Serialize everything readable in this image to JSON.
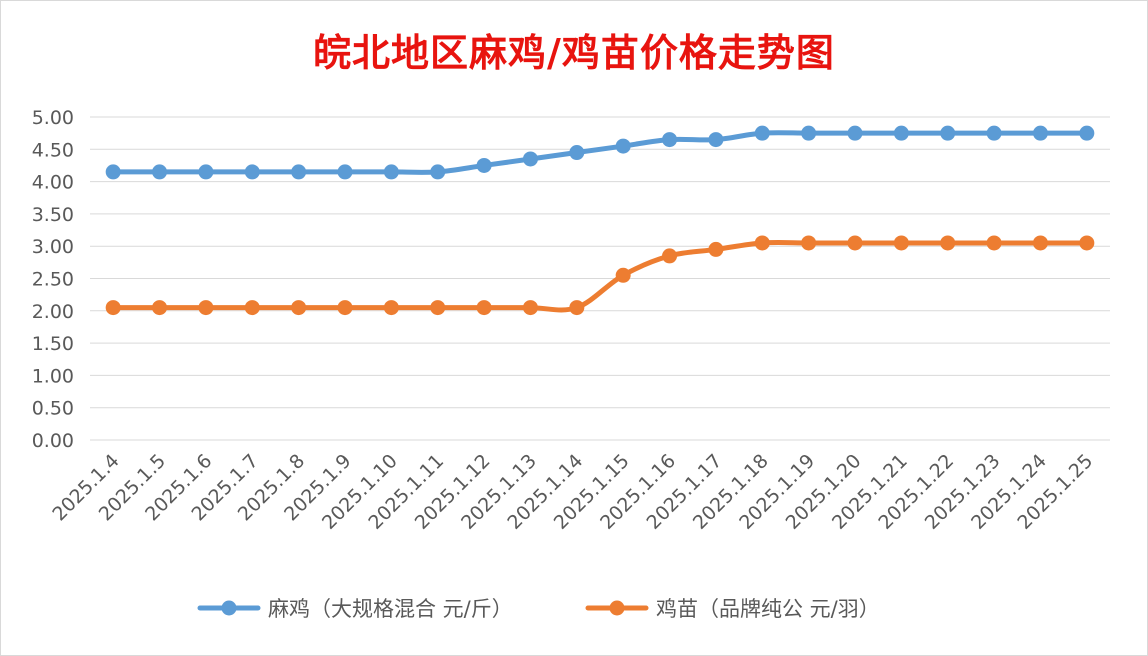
{
  "chart_data": {
    "type": "line",
    "title": "皖北地区麻鸡/鸡苗价格走势图",
    "xlabel": "",
    "ylabel": "",
    "ylim": [
      0,
      5
    ],
    "ytick_step": 0.5,
    "ytick_labels": [
      "0.00",
      "0.50",
      "1.00",
      "1.50",
      "2.00",
      "2.50",
      "3.00",
      "3.50",
      "4.00",
      "4.50",
      "5.00"
    ],
    "grid": true,
    "legend_position": "bottom",
    "categories": [
      "2025.1.4",
      "2025.1.5",
      "2025.1.6",
      "2025.1.7",
      "2025.1.8",
      "2025.1.9",
      "2025.1.10",
      "2025.1.11",
      "2025.1.12",
      "2025.1.13",
      "2025.1.14",
      "2025.1.15",
      "2025.1.16",
      "2025.1.17",
      "2025.1.18",
      "2025.1.19",
      "2025.1.20",
      "2025.1.21",
      "2025.1.22",
      "2025.1.23",
      "2025.1.24",
      "2025.1.25"
    ],
    "series": [
      {
        "name": "麻鸡（大规格混合 元/斤）",
        "color": "#5b9bd5",
        "values": [
          4.15,
          4.15,
          4.15,
          4.15,
          4.15,
          4.15,
          4.15,
          4.15,
          4.25,
          4.35,
          4.45,
          4.55,
          4.65,
          4.65,
          4.75,
          4.75,
          4.75,
          4.75,
          4.75,
          4.75,
          4.75,
          4.75
        ]
      },
      {
        "name": "鸡苗（品牌纯公 元/羽）",
        "color": "#ed7d31",
        "values": [
          2.05,
          2.05,
          2.05,
          2.05,
          2.05,
          2.05,
          2.05,
          2.05,
          2.05,
          2.05,
          2.05,
          2.55,
          2.85,
          2.95,
          3.05,
          3.05,
          3.05,
          3.05,
          3.05,
          3.05,
          3.05,
          3.05
        ]
      }
    ]
  }
}
